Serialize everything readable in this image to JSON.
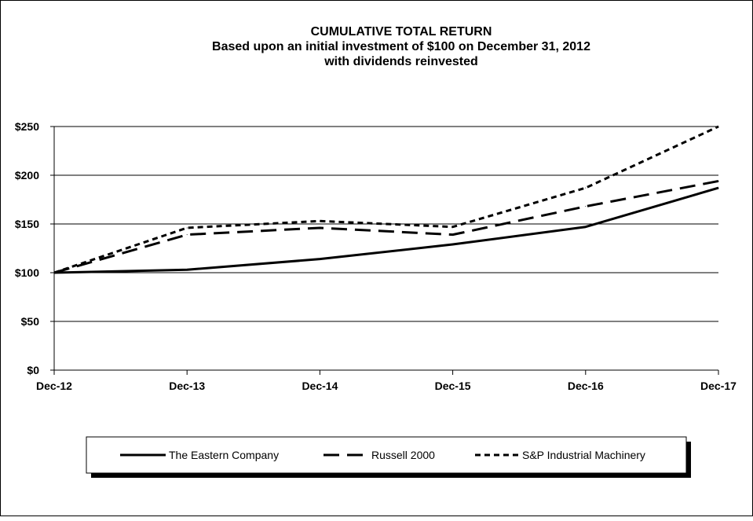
{
  "chart_data": {
    "type": "line",
    "title": "CUMULATIVE TOTAL RETURN",
    "subtitle_lines": [
      "Based upon an initial investment of $100 on December 31, 2012",
      "with dividends reinvested"
    ],
    "xlabel": "",
    "ylabel": "",
    "categories": [
      "Dec-12",
      "Dec-13",
      "Dec-14",
      "Dec-15",
      "Dec-16",
      "Dec-17"
    ],
    "ylim": [
      0,
      250
    ],
    "yticks": [
      {
        "value": 0,
        "label": "$0"
      },
      {
        "value": 50,
        "label": "$50"
      },
      {
        "value": 100,
        "label": "$100"
      },
      {
        "value": 150,
        "label": "$150"
      },
      {
        "value": 200,
        "label": "$200"
      },
      {
        "value": 250,
        "label": "$250"
      }
    ],
    "grid": "horizontal",
    "legend_position": "bottom",
    "series": [
      {
        "name": "The Eastern Company",
        "style": "solid",
        "color": "#000000",
        "values": [
          100,
          103,
          114,
          129,
          147,
          187
        ]
      },
      {
        "name": "Russell 2000",
        "style": "long-dash",
        "color": "#000000",
        "values": [
          100,
          139,
          146,
          139,
          168,
          194
        ]
      },
      {
        "name": "S&P Industrial Machinery",
        "style": "short-dash",
        "color": "#000000",
        "values": [
          100,
          146,
          153,
          147,
          187,
          250
        ]
      }
    ]
  }
}
